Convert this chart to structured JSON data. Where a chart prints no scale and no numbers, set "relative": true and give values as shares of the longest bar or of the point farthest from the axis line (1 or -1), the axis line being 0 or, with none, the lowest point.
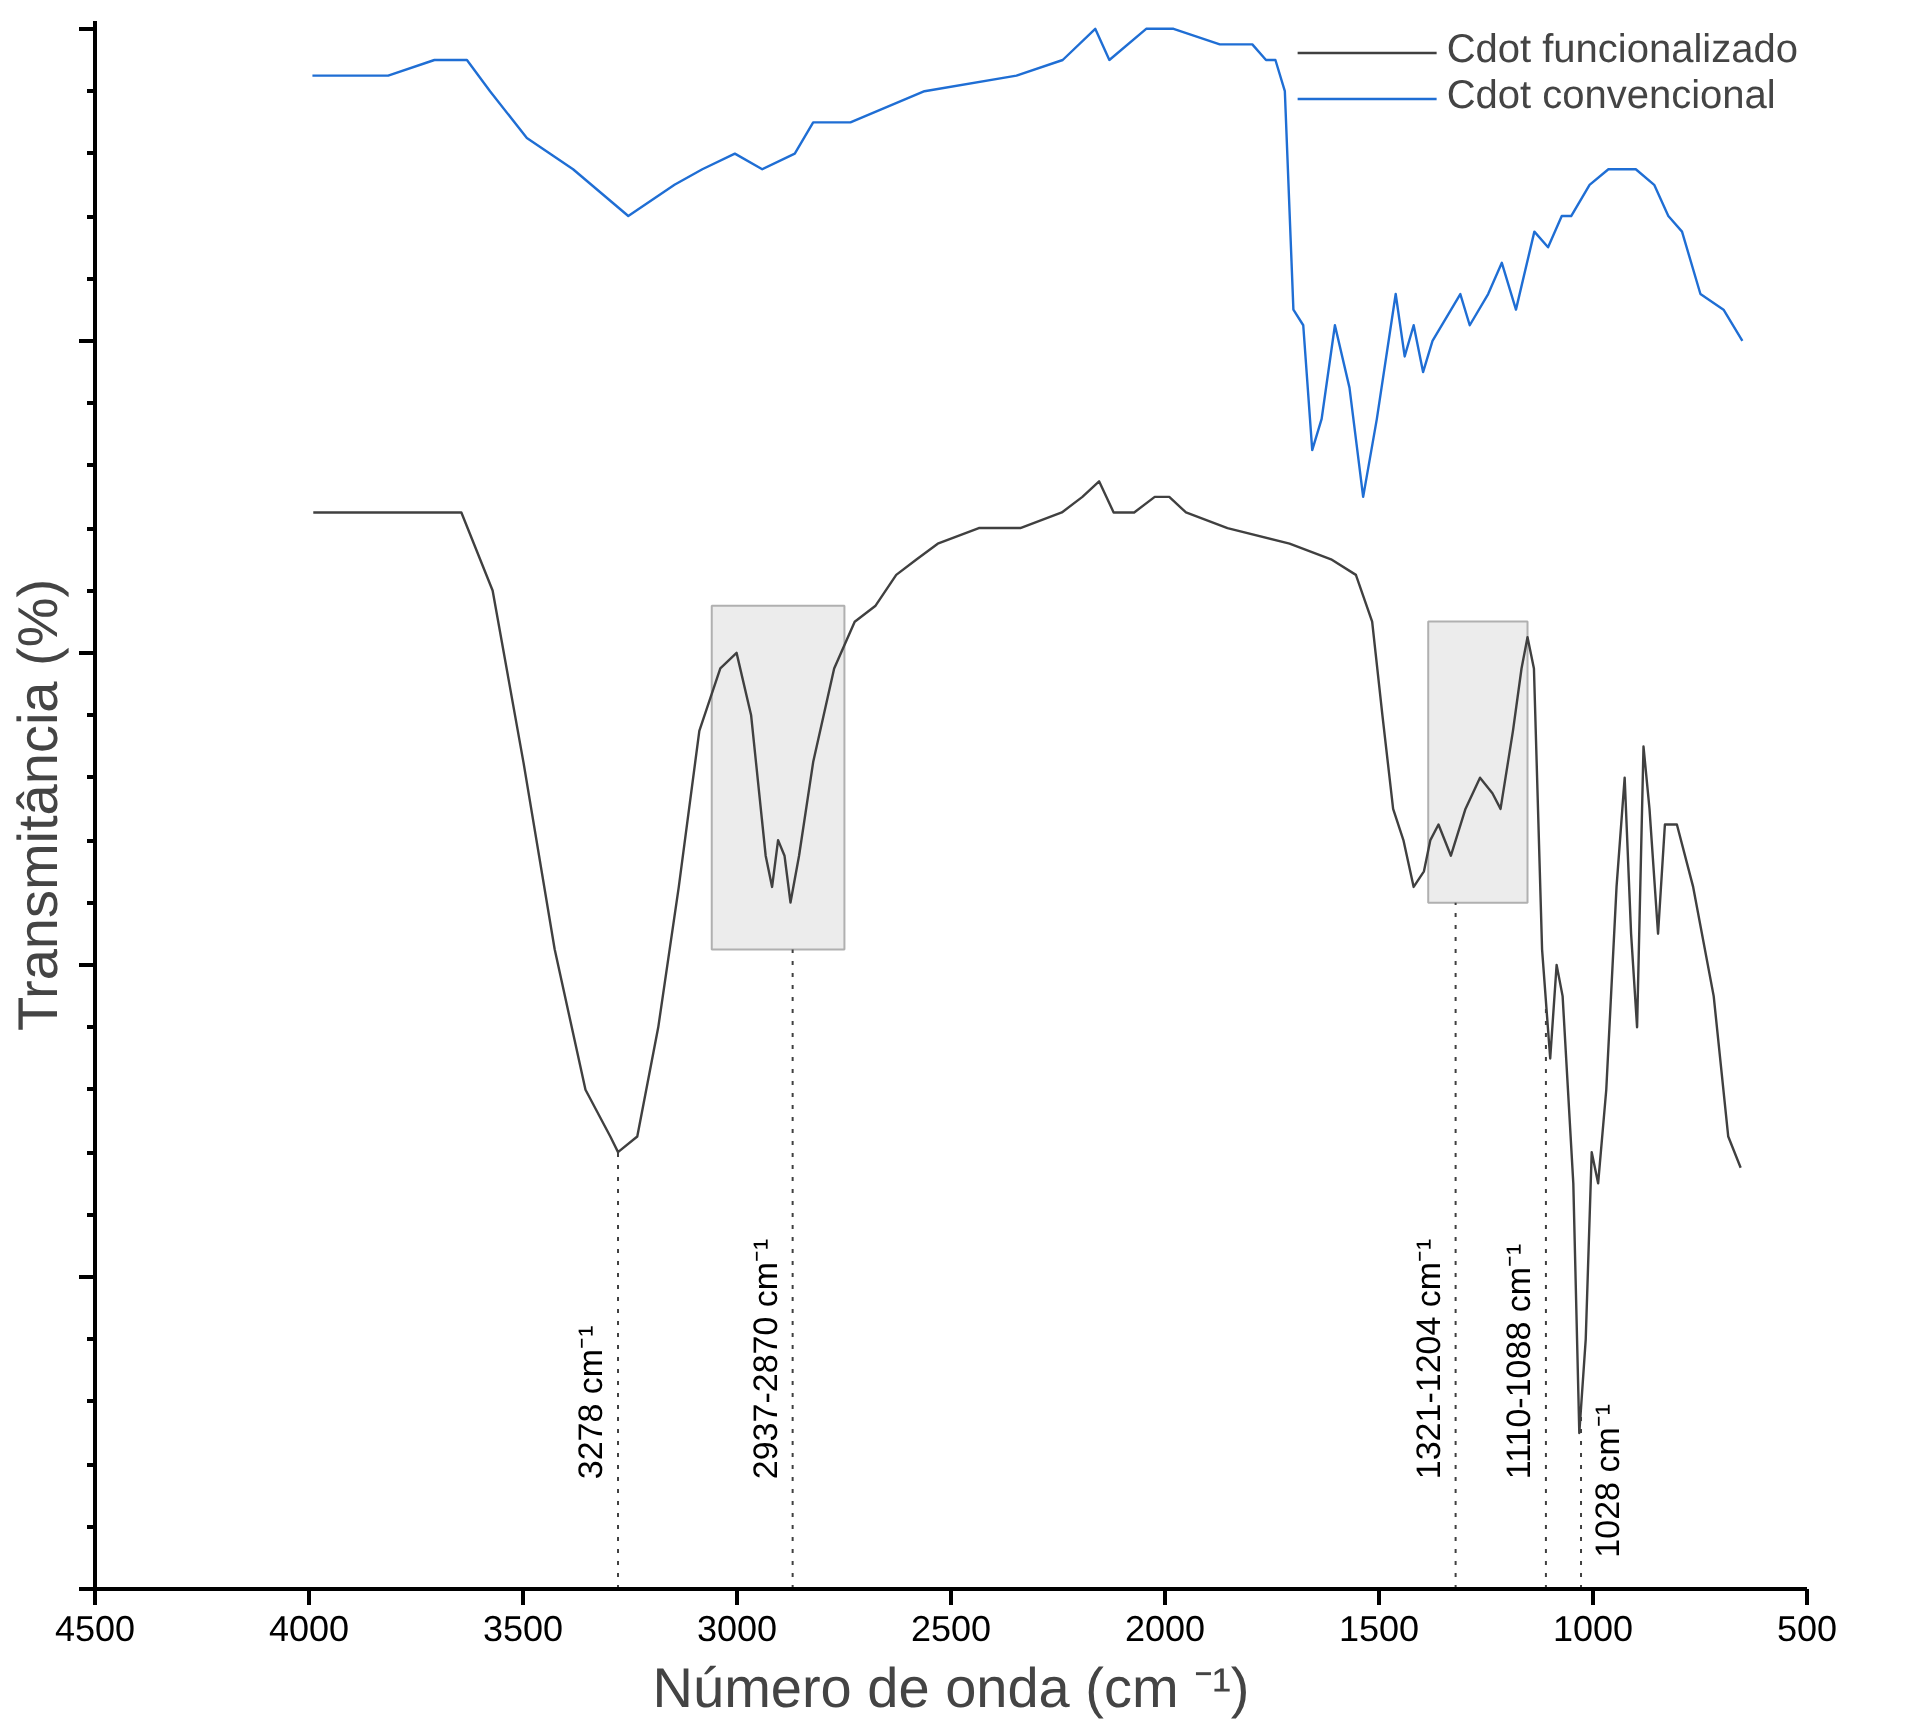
{
  "chart_data": {
    "type": "line",
    "relative": true,
    "xlabel": "Número de onda (cm ⁻¹)",
    "ylabel": "Transmitância (%)",
    "xlim": [
      4500,
      500
    ],
    "xticks": [
      4500,
      4000,
      3500,
      3000,
      2500,
      2000,
      1500,
      1000,
      500
    ],
    "legend": "top right",
    "grid": false,
    "series": [
      {
        "name": "Cdot funcionalizado",
        "color": "#404040",
        "x": [
          3990,
          3740,
          3644,
          3571,
          3499,
          3426,
          3354,
          3296,
          3278,
          3233,
          3184,
          3136,
          3088,
          3039,
          3001,
          2967,
          2933,
          2918,
          2904,
          2889,
          2875,
          2855,
          2822,
          2773,
          2725,
          2677,
          2628,
          2580,
          2531,
          2435,
          2338,
          2241,
          2193,
          2154,
          2120,
          2072,
          2024,
          1990,
          1951,
          1854,
          1709,
          1612,
          1554,
          1516,
          1492,
          1467,
          1443,
          1419,
          1395,
          1380,
          1361,
          1332,
          1298,
          1264,
          1235,
          1216,
          1187,
          1167,
          1153,
          1138,
          1119,
          1100,
          1085,
          1071,
          1046,
          1032,
          1017,
          1003,
          988,
          969,
          945,
          926,
          911,
          897,
          882,
          868,
          848,
          832,
          804,
          766,
          718,
          684,
          655
        ],
        "values": [
          0.69,
          0.69,
          0.69,
          0.64,
          0.53,
          0.41,
          0.32,
          0.29,
          0.28,
          0.29,
          0.36,
          0.45,
          0.55,
          0.59,
          0.6,
          0.56,
          0.47,
          0.45,
          0.48,
          0.47,
          0.44,
          0.47,
          0.53,
          0.59,
          0.62,
          0.63,
          0.65,
          0.66,
          0.67,
          0.68,
          0.68,
          0.69,
          0.7,
          0.71,
          0.69,
          0.69,
          0.7,
          0.7,
          0.69,
          0.68,
          0.67,
          0.66,
          0.65,
          0.62,
          0.56,
          0.5,
          0.48,
          0.45,
          0.46,
          0.48,
          0.49,
          0.47,
          0.5,
          0.52,
          0.51,
          0.5,
          0.55,
          0.59,
          0.61,
          0.59,
          0.41,
          0.34,
          0.4,
          0.38,
          0.26,
          0.1,
          0.16,
          0.28,
          0.26,
          0.32,
          0.45,
          0.52,
          0.42,
          0.36,
          0.54,
          0.5,
          0.42,
          0.49,
          0.49,
          0.45,
          0.38,
          0.29,
          0.27
        ]
      },
      {
        "name": "Cdot convencional",
        "color": "#1f6ed4",
        "x": [
          3992,
          3815,
          3707,
          3631,
          3577,
          3491,
          3383,
          3254,
          3146,
          3081,
          3005,
          2941,
          2865,
          2822,
          2735,
          2562,
          2347,
          2239,
          2163,
          2130,
          2044,
          1980,
          1872,
          1796,
          1764,
          1742,
          1720,
          1700,
          1677,
          1656,
          1634,
          1603,
          1569,
          1537,
          1505,
          1461,
          1440,
          1419,
          1397,
          1375,
          1310,
          1288,
          1245,
          1213,
          1180,
          1137,
          1105,
          1073,
          1051,
          1008,
          964,
          900,
          857,
          824,
          792,
          749,
          695,
          651
        ],
        "values": [
          0.97,
          0.97,
          0.98,
          0.98,
          0.96,
          0.93,
          0.91,
          0.88,
          0.9,
          0.91,
          0.92,
          0.91,
          0.92,
          0.94,
          0.94,
          0.96,
          0.97,
          0.98,
          1.0,
          0.98,
          1.0,
          1.0,
          0.99,
          0.99,
          0.98,
          0.98,
          0.96,
          0.82,
          0.81,
          0.73,
          0.75,
          0.81,
          0.77,
          0.7,
          0.75,
          0.83,
          0.79,
          0.81,
          0.78,
          0.8,
          0.83,
          0.81,
          0.83,
          0.85,
          0.82,
          0.87,
          0.86,
          0.88,
          0.88,
          0.9,
          0.91,
          0.91,
          0.9,
          0.88,
          0.87,
          0.83,
          0.82,
          0.8
        ]
      }
    ],
    "bands": [
      {
        "axis": "x",
        "from": 3059,
        "to": 2749,
        "color": "#ececec"
      },
      {
        "axis": "x",
        "from": 1385,
        "to": 1153,
        "color": "#ececec"
      }
    ],
    "ref_lines": [
      {
        "axis": "x",
        "value": 3278,
        "label": "3278 cm⁻¹",
        "line_style": "dotted",
        "color": "#404040"
      },
      {
        "axis": "x",
        "value": 2870,
        "label": "2937-2870 cm⁻¹",
        "line_style": "dotted",
        "color": "#404040"
      },
      {
        "axis": "x",
        "value": 1321,
        "label": "1321-1204 cm⁻¹",
        "line_style": "dotted",
        "color": "#404040"
      },
      {
        "axis": "x",
        "value": 1110,
        "label": "1110-1088 cm⁻¹",
        "line_style": "dotted",
        "color": "#404040"
      },
      {
        "axis": "x",
        "value": 1028,
        "label": "1028 cm⁻¹",
        "line_style": "dotted",
        "color": "#404040"
      }
    ]
  }
}
